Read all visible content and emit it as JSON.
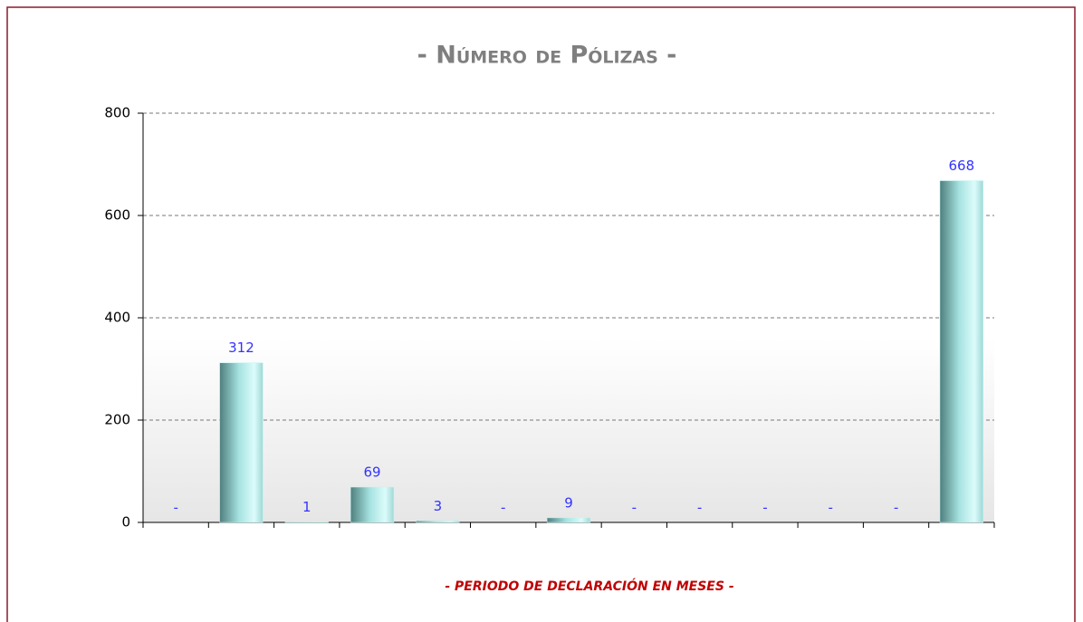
{
  "chart_data": {
    "type": "bar",
    "title": "- Número de Pólizas -",
    "x_label": "- PERIODO DE DECLARACIÓN EN MESES -",
    "categories": [
      null,
      null,
      null,
      null,
      null,
      null,
      null,
      null,
      null,
      null,
      null,
      null,
      null
    ],
    "values": [
      0,
      312,
      1,
      69,
      3,
      0,
      9,
      0,
      0,
      0,
      0,
      0,
      668
    ],
    "value_labels": [
      "-",
      "312",
      "1",
      "69",
      "3",
      "-",
      "9",
      "-",
      "-",
      "-",
      "-",
      "-",
      "668"
    ],
    "color": "#bff5f3",
    "label_color": "#3333ff",
    "ylim": [
      0,
      800
    ],
    "yticks": [
      0,
      200,
      400,
      600,
      800
    ],
    "grid": true
  }
}
